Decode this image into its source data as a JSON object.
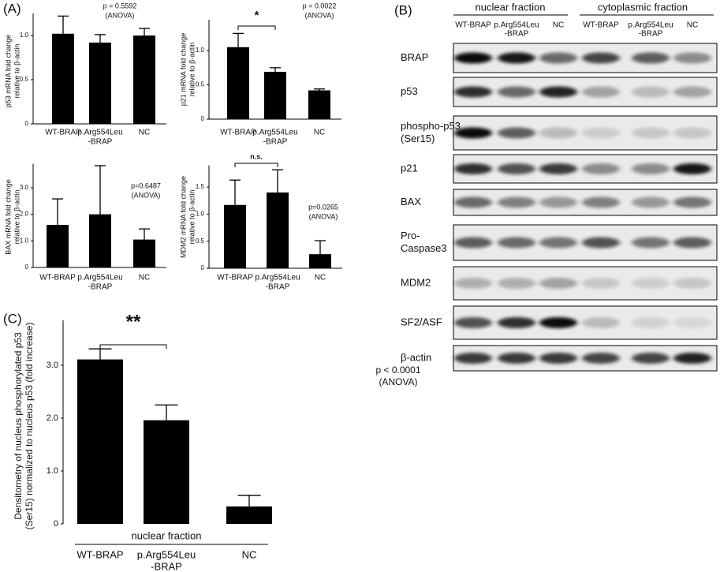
{
  "panel_labels": [
    "(A)",
    "(B)",
    "(C)"
  ],
  "chart_data": [
    {
      "type": "bar",
      "categories": [
        [
          "WT-BRAP"
        ],
        [
          "p.Arg554Leu",
          "-BRAP"
        ],
        [
          "NC"
        ]
      ],
      "values": [
        1.02,
        0.92,
        1.0
      ],
      "errors": [
        0.2,
        0.09,
        0.08
      ],
      "color": "#000000",
      "ylim": [
        0,
        1.25
      ],
      "yticks": [
        0,
        0.5,
        {
          "value": 1,
          "label": "1.0"
        }
      ],
      "ylabel": [
        "p53 mRNA fold change",
        "relative to β-actin"
      ],
      "annotations": [
        "p = 0.5592",
        "(ANOVA)"
      ]
    },
    {
      "type": "bar",
      "categories": [
        [
          "WT-BRAP"
        ],
        [
          "p.Arg554Leu",
          "-BRAP"
        ],
        [
          "NC"
        ]
      ],
      "values": [
        1.05,
        0.69,
        0.42
      ],
      "errors": [
        0.2,
        0.06,
        0.02
      ],
      "color": "#000000",
      "ylim": [
        0,
        1.45
      ],
      "yticks": [
        0,
        0.5,
        {
          "value": 1,
          "label": "1.0"
        }
      ],
      "ylabel": [
        "p21 mRNA fold change",
        "relative to β-actin"
      ],
      "annotations": [
        "p = 0.0022",
        "(ANOVA)"
      ],
      "significance": "*"
    },
    {
      "type": "bar",
      "categories": [
        [
          "WT-BRAP"
        ],
        [
          "p.Arg554Leu",
          "-BRAP"
        ],
        [
          "NC"
        ]
      ],
      "values": [
        1.6,
        2.0,
        1.05
      ],
      "errors": [
        0.98,
        1.83,
        0.4
      ],
      "color": "#000000",
      "ylim": [
        0,
        3.9
      ],
      "yticks": [
        0,
        {
          "value": 1,
          "label": "1.0"
        },
        {
          "value": 2,
          "label": "2.0"
        },
        {
          "value": 3,
          "label": "3.0"
        }
      ],
      "ylabel": [
        "BAX mRNA fold change",
        "relative to β-actin"
      ],
      "annotations": [
        "p=0.6487",
        "(ANOVA)"
      ]
    },
    {
      "type": "bar",
      "categories": [
        [
          "WT-BRAP"
        ],
        [
          "p.Arg554Leu",
          "-BRAP"
        ],
        [
          "NC"
        ]
      ],
      "values": [
        1.17,
        1.4,
        0.26
      ],
      "errors": [
        0.46,
        0.42,
        0.25
      ],
      "color": "#000000",
      "ylim": [
        0,
        1.9
      ],
      "yticks": [
        0,
        0.5,
        {
          "value": 1,
          "label": "1.0"
        },
        1.5
      ],
      "ylabel": [
        "MDM2 mRNA fold change",
        "relative to β-actin"
      ],
      "annotations": [
        "p=0.0265",
        "(ANOVA)"
      ],
      "significance": "n.s."
    },
    {
      "type": "bar",
      "categories": [
        [
          "WT-BRAP"
        ],
        [
          "p.Arg554Leu",
          "-BRAP"
        ],
        [
          "NC"
        ]
      ],
      "values": [
        3.11,
        1.96,
        0.33
      ],
      "errors": [
        0.2,
        0.29,
        0.21
      ],
      "color": "#000000",
      "ylim": [
        0,
        3.85
      ],
      "yticks": [
        0,
        {
          "value": 1,
          "label": "1.0"
        },
        {
          "value": 2,
          "label": "2.0"
        },
        {
          "value": 3,
          "label": "3.0"
        }
      ],
      "ylabel": [
        "Densitometry of nucleus phosphorylated p53",
        "(Ser15) normalized to nucleus p53 (fold increase)"
      ],
      "xlabel": "nuclear fraction",
      "annotations": [
        "p < 0.0001",
        "(ANOVA)"
      ],
      "significance": "**"
    }
  ],
  "blot": {
    "fractions": [
      "nuclear fraction",
      "cytoplasmic fraction"
    ],
    "lanes": [
      [
        "WT-BRAP"
      ],
      [
        "p.Arg554Leu",
        "-BRAP"
      ],
      [
        "NC"
      ],
      [
        "WT-BRAP"
      ],
      [
        "p.Arg554Leu",
        "-BRAP"
      ],
      [
        "NC"
      ]
    ],
    "rows": [
      [
        "BRAP"
      ],
      [
        "p53"
      ],
      [
        "phospho-p53",
        "(Ser15)"
      ],
      [
        "p21"
      ],
      [
        "BAX"
      ],
      [
        "Pro-",
        "Caspase3"
      ],
      [
        "MDM2"
      ],
      [
        "SF2/ASF"
      ],
      [
        "β-actin"
      ]
    ]
  }
}
